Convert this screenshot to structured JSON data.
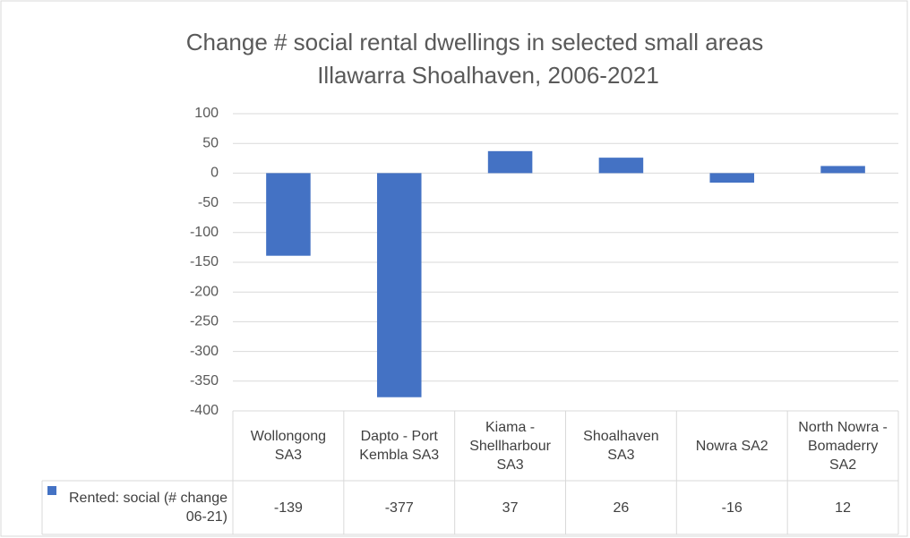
{
  "chart_data": {
    "type": "bar",
    "title": "Change # social rental dwellings in selected small areas",
    "subtitle": "Illawarra Shoalhaven, 2006-2021",
    "categories": [
      "Wollongong SA3",
      "Dapto - Port Kembla SA3",
      "Kiama - Shellharbour SA3",
      "Shoalhaven SA3",
      "Nowra SA2",
      "North Nowra - Bomaderry SA2"
    ],
    "series": [
      {
        "name": "Rented: social (# change 06-21)",
        "color": "#4472c4",
        "values": [
          -139,
          -377,
          37,
          26,
          -16,
          12
        ]
      }
    ],
    "ylim": [
      -400,
      100
    ],
    "yticks": [
      -400,
      -350,
      -300,
      -250,
      -200,
      -150,
      -100,
      -50,
      0,
      50,
      100
    ],
    "grid": true,
    "data_table": true
  }
}
